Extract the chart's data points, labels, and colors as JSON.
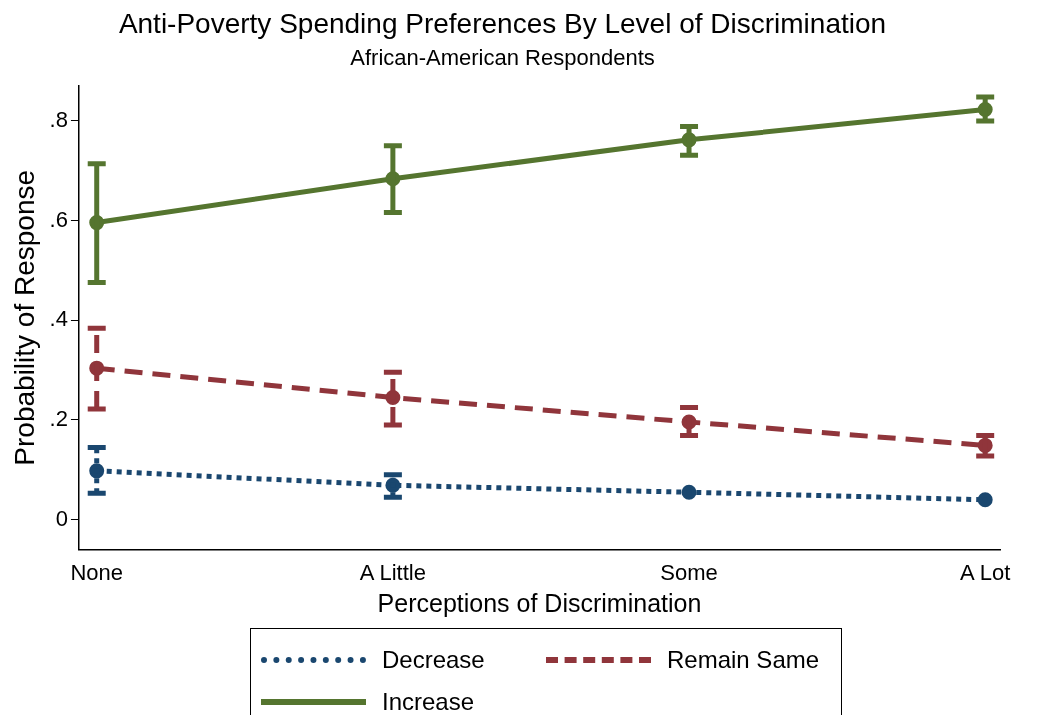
{
  "chart_data": {
    "type": "line",
    "title": "Anti-Poverty Spending Preferences By Level of Discrimination",
    "subtitle": "African-American Respondents",
    "xlabel": "Perceptions of Discrimination",
    "ylabel": "Probability of Response",
    "categories": [
      "None",
      "A Little",
      "Some",
      "A Lot"
    ],
    "series": [
      {
        "name": "Decrease",
        "color": "#1a476f",
        "line_style": "dotted",
        "values": [
          0.098,
          0.069,
          0.055,
          0.04
        ],
        "errors": [
          [
            0.053,
            0.145
          ],
          [
            0.045,
            0.09
          ],
          null,
          null
        ]
      },
      {
        "name": "Remain Same",
        "color": "#90353b",
        "line_style": "dashed",
        "values": [
          0.304,
          0.245,
          0.196,
          0.149
        ],
        "errors": [
          [
            0.222,
            0.384
          ],
          [
            0.19,
            0.296
          ],
          [
            0.169,
            0.225
          ],
          [
            0.128,
            0.169
          ]
        ]
      },
      {
        "name": "Increase",
        "color": "#55752f",
        "line_style": "solid",
        "values": [
          0.596,
          0.684,
          0.762,
          0.823
        ],
        "errors": [
          [
            0.476,
            0.714
          ],
          [
            0.616,
            0.75
          ],
          [
            0.731,
            0.789
          ],
          [
            0.8,
            0.848
          ]
        ]
      }
    ],
    "ylim": [
      -0.06,
      0.87
    ],
    "yticks": [
      0,
      {
        "value": 0.2,
        "label": ".2"
      },
      {
        "value": 0.4,
        "label": ".4"
      },
      {
        "value": 0.6,
        "label": ".6"
      },
      {
        "value": 0.8,
        "label": ".8"
      }
    ],
    "marker": "circle",
    "grid": false,
    "legend": "bottom"
  }
}
